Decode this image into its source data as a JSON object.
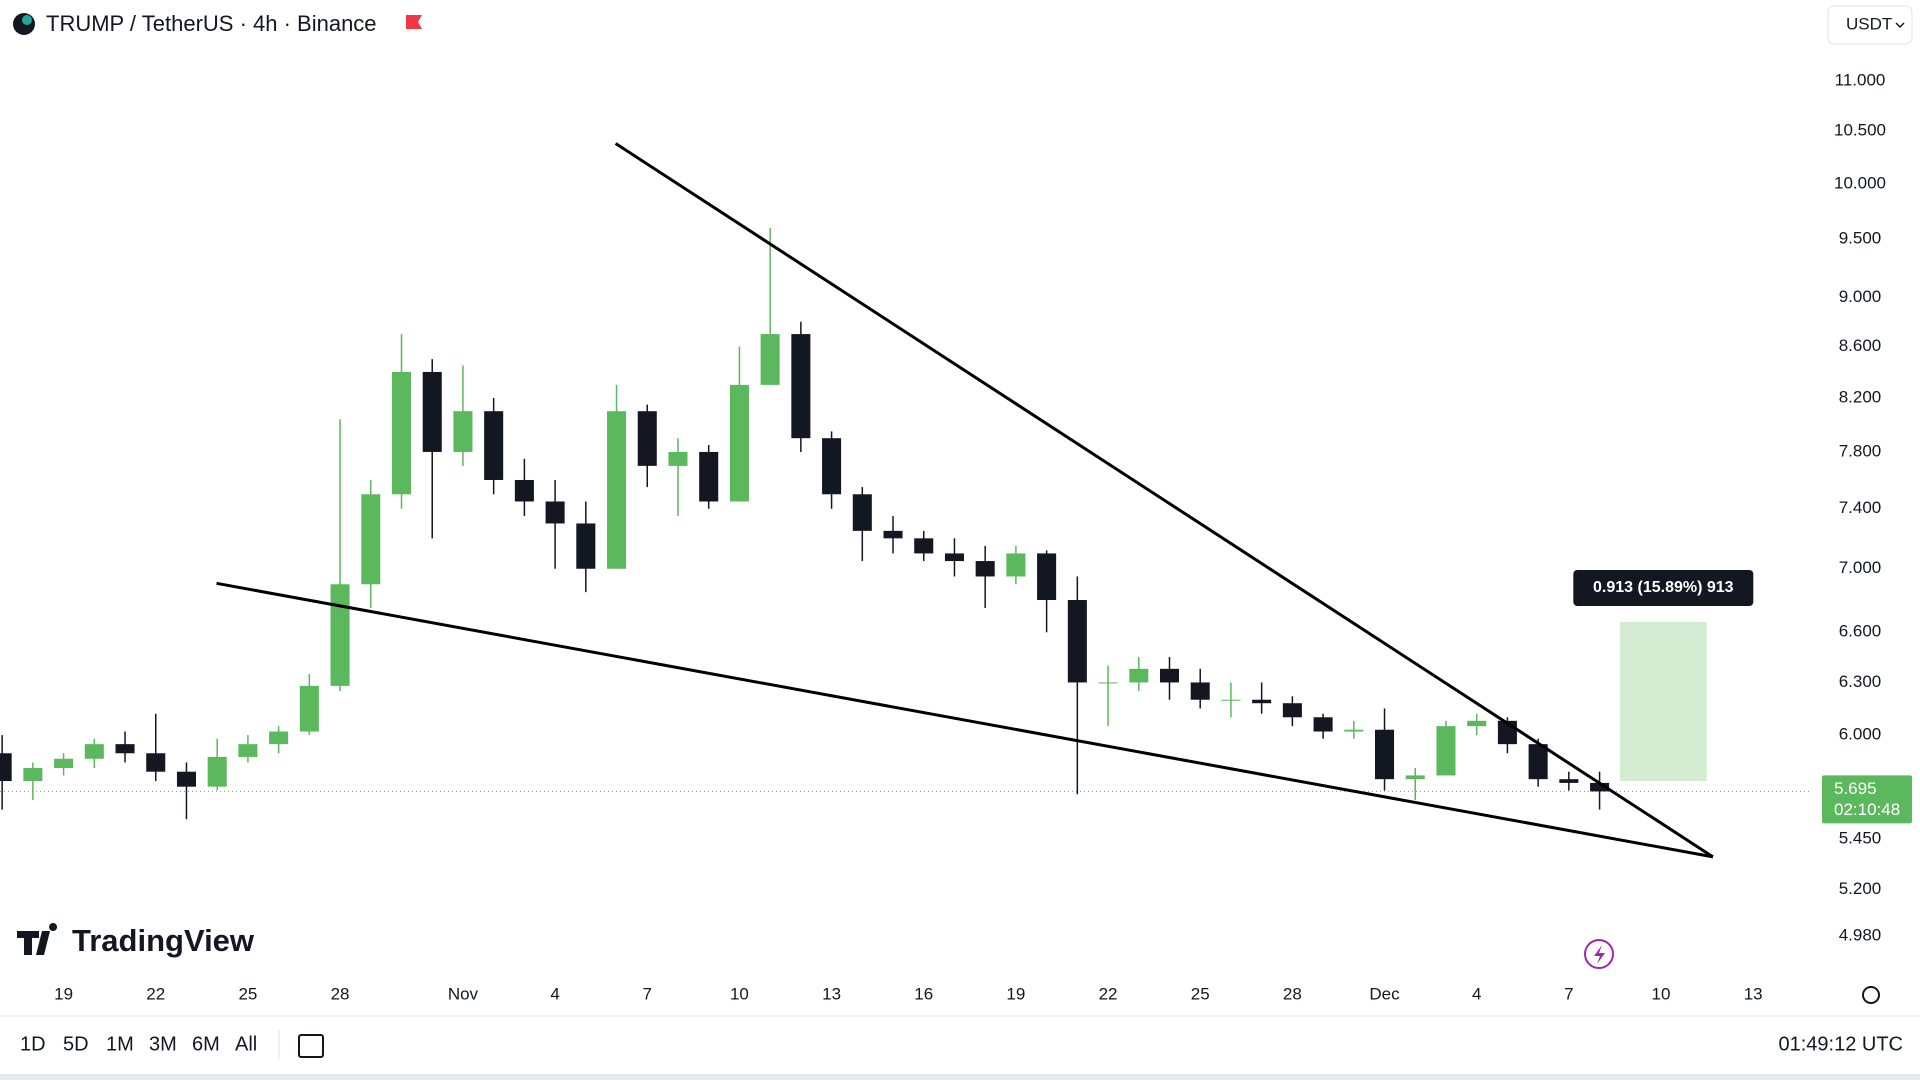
{
  "header": {
    "title": "TRUMP / TetherUS · 4h · Binance",
    "currency": "USDT"
  },
  "logo": "TradingView",
  "toolbar": {
    "ranges": [
      "1D",
      "5D",
      "1M",
      "3M",
      "6M",
      "All"
    ],
    "clock": "01:49:12 UTC"
  },
  "chart_data": {
    "type": "candlestick",
    "log_scale": true,
    "up_color": "#5cb85c",
    "down_color": "#131722",
    "x": [
      17,
      18,
      19,
      20,
      21,
      22,
      23,
      24,
      25,
      26,
      27,
      28,
      29,
      30,
      31,
      32,
      33,
      34,
      35,
      36,
      37,
      38,
      39,
      40,
      41,
      42,
      43,
      44,
      45,
      46,
      47,
      48,
      49,
      50,
      51,
      52,
      53,
      54,
      55,
      56,
      57,
      58,
      59,
      60,
      61,
      62,
      63,
      64,
      65,
      66,
      67,
      68,
      69
    ],
    "open": [
      5.9,
      5.75,
      5.82,
      5.87,
      5.95,
      5.9,
      5.8,
      5.72,
      5.88,
      5.95,
      6.02,
      6.28,
      6.9,
      7.5,
      8.4,
      7.8,
      8.1,
      7.6,
      7.45,
      7.3,
      7.0,
      8.1,
      7.7,
      7.8,
      7.45,
      8.3,
      8.7,
      7.9,
      7.5,
      7.25,
      7.2,
      7.1,
      7.05,
      6.95,
      7.1,
      6.8,
      6.3,
      6.3,
      6.38,
      6.3,
      6.2,
      6.2,
      6.18,
      6.1,
      6.02,
      6.03,
      5.76,
      5.78,
      6.05,
      6.08,
      5.95,
      5.76,
      5.74
    ],
    "high": [
      6.0,
      5.85,
      5.9,
      5.98,
      6.02,
      6.12,
      5.85,
      5.98,
      6.0,
      6.05,
      6.35,
      8.04,
      7.6,
      8.7,
      8.5,
      8.45,
      8.2,
      7.75,
      7.6,
      7.45,
      8.3,
      8.15,
      7.9,
      7.85,
      8.6,
      9.6,
      8.8,
      7.95,
      7.55,
      7.35,
      7.25,
      7.2,
      7.15,
      7.15,
      7.12,
      6.95,
      6.4,
      6.45,
      6.45,
      6.38,
      6.3,
      6.3,
      6.22,
      6.12,
      6.08,
      6.15,
      5.82,
      6.08,
      6.12,
      6.1,
      5.98,
      5.8,
      5.8
    ],
    "low": [
      5.6,
      5.65,
      5.78,
      5.82,
      5.85,
      5.75,
      5.55,
      5.7,
      5.85,
      5.9,
      6.0,
      6.25,
      6.75,
      7.4,
      7.2,
      7.7,
      7.5,
      7.35,
      7.0,
      6.85,
      7.0,
      7.55,
      7.35,
      7.4,
      7.45,
      8.3,
      7.8,
      7.4,
      7.05,
      7.1,
      7.05,
      6.95,
      6.75,
      6.9,
      6.6,
      5.68,
      6.05,
      6.25,
      6.2,
      6.15,
      6.1,
      6.12,
      6.05,
      5.98,
      5.98,
      5.7,
      5.65,
      5.78,
      6.0,
      5.9,
      5.72,
      5.7,
      5.6
    ],
    "close": [
      5.75,
      5.82,
      5.87,
      5.95,
      5.9,
      5.8,
      5.72,
      5.88,
      5.95,
      6.02,
      6.28,
      6.9,
      7.5,
      8.4,
      7.8,
      8.1,
      7.6,
      7.45,
      7.3,
      7.0,
      8.1,
      7.7,
      7.8,
      7.45,
      8.3,
      8.7,
      7.9,
      7.5,
      7.25,
      7.2,
      7.1,
      7.05,
      6.95,
      7.1,
      6.8,
      6.3,
      6.3,
      6.38,
      6.3,
      6.2,
      6.2,
      6.18,
      6.1,
      6.02,
      6.03,
      5.76,
      5.78,
      6.05,
      6.08,
      5.95,
      5.76,
      5.74,
      5.695
    ],
    "xlim": [
      16.93,
      75.85
    ],
    "xticks": [
      19,
      22,
      25,
      28,
      {
        "value": 32,
        "label": "Nov"
      },
      {
        "value": 35,
        "label": "4"
      },
      {
        "value": 38,
        "label": "7"
      },
      {
        "value": 41,
        "label": "10"
      },
      {
        "value": 44,
        "label": "13"
      },
      {
        "value": 47,
        "label": "16"
      },
      {
        "value": 50,
        "label": "19"
      },
      {
        "value": 53,
        "label": "22"
      },
      {
        "value": 56,
        "label": "25"
      },
      {
        "value": 59,
        "label": "28"
      },
      {
        "value": 62,
        "label": "Dec"
      },
      {
        "value": 65,
        "label": "4"
      },
      {
        "value": 68,
        "label": "7"
      },
      {
        "value": 71,
        "label": "10"
      },
      {
        "value": 74,
        "label": "13"
      }
    ],
    "ylim": [
      4.84,
      11.33
    ],
    "yticks": [
      {
        "value": 11,
        "label": "11.000"
      },
      {
        "value": 10.5,
        "label": "10.500"
      },
      {
        "value": 10,
        "label": "10.000"
      },
      {
        "value": 9.5,
        "label": "9.500"
      },
      {
        "value": 9,
        "label": "9.000"
      },
      {
        "value": 8.6,
        "label": "8.600"
      },
      {
        "value": 8.2,
        "label": "8.200"
      },
      {
        "value": 7.8,
        "label": "7.800"
      },
      {
        "value": 7.4,
        "label": "7.400"
      },
      {
        "value": 7,
        "label": "7.000"
      },
      {
        "value": 6.6,
        "label": "6.600"
      },
      {
        "value": 6.3,
        "label": "6.300"
      },
      {
        "value": 6,
        "label": "6.000"
      },
      {
        "value": 5.45,
        "label": "5.450"
      },
      {
        "value": 5.2,
        "label": "5.200"
      },
      {
        "value": 4.98,
        "label": "4.980"
      }
    ],
    "trendlines": [
      {
        "x": [
          36.97,
          72.69
        ],
        "y": [
          10.38,
          5.36
        ]
      },
      {
        "x": [
          23.98,
          72.69
        ],
        "y": [
          6.906,
          5.36
        ]
      }
    ],
    "measure": {
      "label": "0.913 (15.89%) 913",
      "x": [
        69.66,
        72.49
      ],
      "y": [
        5.75,
        6.663
      ],
      "color": "#d4ecd2"
    },
    "last_price": 5.695,
    "countdown": "02:10:48"
  }
}
